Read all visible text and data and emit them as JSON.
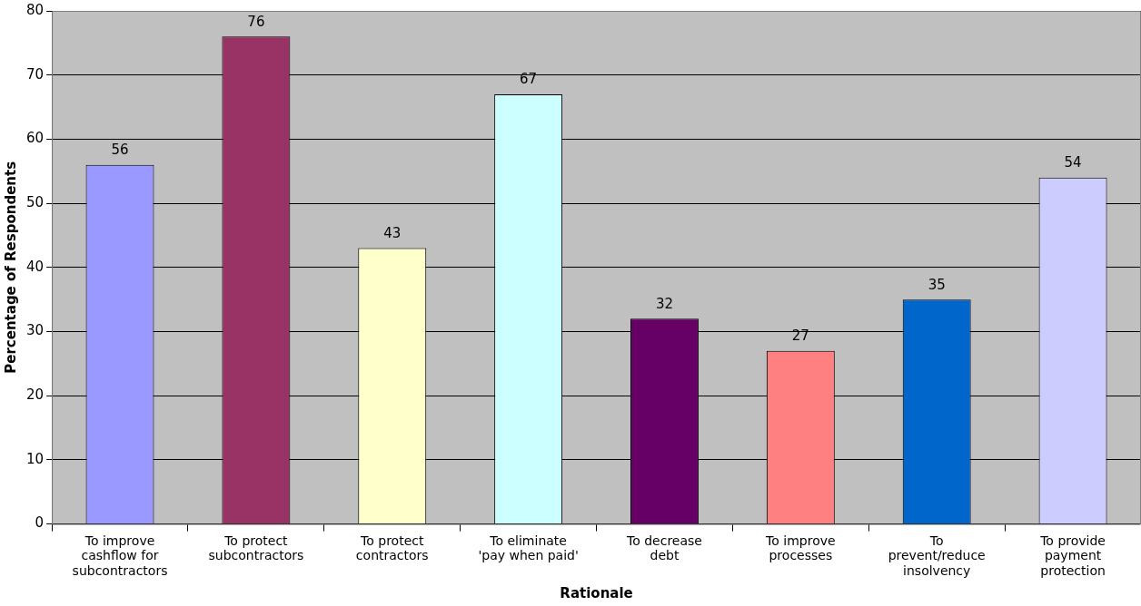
{
  "chart_data": {
    "type": "bar",
    "xlabel": "Rationale",
    "ylabel": "Percentage of Respondents",
    "categories": [
      "To improve cashflow for subcontractors",
      "To protect subcontractors",
      "To protect contractors",
      "To eliminate 'pay when paid'",
      "To decrease debt",
      "To improve processes",
      "To prevent/reduce insolvency",
      "To provide payment protection"
    ],
    "values": [
      56,
      76,
      43,
      67,
      32,
      27,
      35,
      54
    ],
    "colors": [
      "#9999ff",
      "#993366",
      "#ffffcc",
      "#ccffff",
      "#660066",
      "#ff8080",
      "#0066cc",
      "#ccccff"
    ],
    "ylim": [
      0,
      80
    ],
    "yticks": [
      0,
      10,
      20,
      30,
      40,
      50,
      60,
      70,
      80
    ],
    "grid": "y",
    "data_labels": true
  }
}
